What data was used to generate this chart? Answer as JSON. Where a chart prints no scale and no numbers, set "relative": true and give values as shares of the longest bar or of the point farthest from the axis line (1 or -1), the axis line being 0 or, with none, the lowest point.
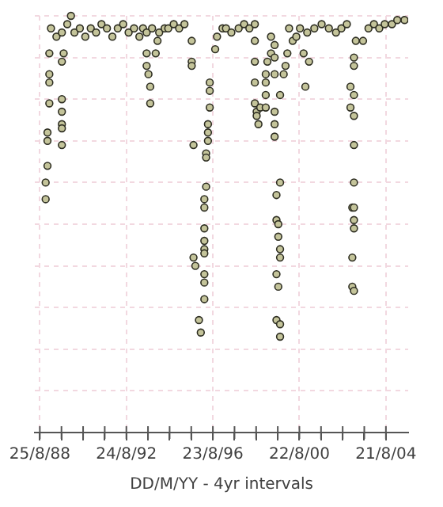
{
  "chart_data": {
    "type": "scatter",
    "xlabel": "DD/M/YY - 4yr intervals",
    "relative": true,
    "grid": true,
    "legend": false,
    "marker": "circle",
    "xlim": [
      "1988-06-01",
      "2005-09-01"
    ],
    "xticks": [
      {
        "value": "1988-08-25",
        "label": "25/8/88"
      },
      {
        "value": "1989-08-25",
        "label": null
      },
      {
        "value": "1990-08-25",
        "label": null
      },
      {
        "value": "1991-08-25",
        "label": null
      },
      {
        "value": "1992-08-24",
        "label": "24/8/92"
      },
      {
        "value": "1993-08-24",
        "label": null
      },
      {
        "value": "1994-08-24",
        "label": null
      },
      {
        "value": "1995-08-24",
        "label": null
      },
      {
        "value": "1996-08-23",
        "label": "23/8/96"
      },
      {
        "value": "1997-08-23",
        "label": null
      },
      {
        "value": "1998-08-23",
        "label": null
      },
      {
        "value": "1999-08-23",
        "label": null
      },
      {
        "value": "2000-08-22",
        "label": "22/8/00"
      },
      {
        "value": "2001-08-22",
        "label": null
      },
      {
        "value": "2002-08-22",
        "label": null
      },
      {
        "value": "2003-08-22",
        "label": null
      },
      {
        "value": "2004-08-21",
        "label": "21/8/04"
      }
    ],
    "series": [
      {
        "color": "#c4c49a",
        "x": [
          "1989-03",
          "1989-06",
          "1989-09",
          "1989-12",
          "1990-02",
          "1990-04",
          "1990-07",
          "1990-10",
          "1991-01",
          "1991-04",
          "1991-07",
          "1991-10",
          "1992-01",
          "1992-04",
          "1992-07",
          "1992-10",
          "1993-01",
          "1993-04",
          "1993-06",
          "1993-08",
          "1993-11",
          "1994-03",
          "1994-06",
          "1994-08",
          "1989-02",
          "1989-02",
          "1989-02",
          "1989-02",
          "1989-01",
          "1989-01",
          "1989-01",
          "1988-12",
          "1988-12",
          "1989-10",
          "1989-09",
          "1989-09",
          "1989-09",
          "1989-09",
          "1989-09",
          "1989-09",
          "1993-08",
          "1993-08",
          "1993-09",
          "1993-10",
          "1993-10",
          "1994-01",
          "1994-02",
          "1994-11",
          "1995-02",
          "1995-05",
          "1995-09",
          "1995-09",
          "1995-09",
          "1995-10",
          "1995-10",
          "1995-11",
          "1996-07",
          "1996-07",
          "1996-07",
          "1996-06",
          "1996-06",
          "1996-06",
          "1996-05",
          "1996-05",
          "1996-05",
          "1996-04",
          "1996-04",
          "1996-04",
          "1996-04",
          "1996-04",
          "1996-04",
          "1996-04",
          "1996-04",
          "1996-04",
          "1996-01",
          "1996-02",
          "1996-10",
          "1996-11",
          "1997-02",
          "1997-04",
          "1997-07",
          "1997-11",
          "1998-02",
          "1998-05",
          "1998-08",
          "1998-08",
          "1998-08",
          "1998-08",
          "1998-08",
          "1998-09",
          "1998-09",
          "1998-10",
          "1998-11",
          "1999-05",
          "1999-05",
          "1999-03",
          "1999-02",
          "1999-02",
          "1999-02",
          "1999-02",
          "1999-07",
          "1999-07",
          "1999-07",
          "1999-07",
          "1999-07",
          "1999-07",
          "1999-10",
          "1999-08",
          "1999-08",
          "1999-09",
          "1999-09",
          "1999-10",
          "1999-10",
          "1999-08",
          "1999-09",
          "1999-08",
          "1999-10",
          "1999-10",
          "1999-10",
          "1999-12",
          "2000-01",
          "2000-02",
          "2000-05",
          "2000-07",
          "2000-11",
          "2001-02",
          "2000-12",
          "2000-03",
          "2000-09",
          "2001-01",
          "2001-05",
          "2001-09",
          "2002-01",
          "2002-05",
          "2002-08",
          "2002-11",
          "2003-03",
          "2003-03",
          "2003-01",
          "2003-03",
          "2003-01",
          "2003-03",
          "2003-03",
          "2003-03",
          "2003-02",
          "2003-03",
          "2003-03",
          "2003-03",
          "2003-02",
          "2003-02",
          "2003-03",
          "2003-04",
          "2003-08",
          "2003-11",
          "2004-02",
          "2004-05",
          "2004-08",
          "2004-12",
          "2005-03",
          "2005-07"
        ],
        "values": [
          0.97,
          0.95,
          0.96,
          0.98,
          1.0,
          0.96,
          0.97,
          0.95,
          0.97,
          0.96,
          0.98,
          0.97,
          0.95,
          0.97,
          0.98,
          0.96,
          0.97,
          0.95,
          0.97,
          0.96,
          0.97,
          0.96,
          0.97,
          0.97,
          0.91,
          0.86,
          0.84,
          0.79,
          0.72,
          0.7,
          0.64,
          0.6,
          0.56,
          0.91,
          0.89,
          0.8,
          0.77,
          0.74,
          0.73,
          0.69,
          0.91,
          0.88,
          0.86,
          0.83,
          0.79,
          0.91,
          0.94,
          0.98,
          0.97,
          0.98,
          0.94,
          0.89,
          0.88,
          0.69,
          0.42,
          0.4,
          0.84,
          0.82,
          0.78,
          0.74,
          0.72,
          0.7,
          0.67,
          0.66,
          0.59,
          0.56,
          0.54,
          0.49,
          0.46,
          0.44,
          0.43,
          0.38,
          0.36,
          0.32,
          0.27,
          0.24,
          0.92,
          0.95,
          0.97,
          0.97,
          0.96,
          0.97,
          0.98,
          0.97,
          0.98,
          0.94,
          0.89,
          0.84,
          0.79,
          0.77,
          0.76,
          0.74,
          0.78,
          0.95,
          0.91,
          0.89,
          0.86,
          0.84,
          0.81,
          0.78,
          0.93,
          0.9,
          0.86,
          0.77,
          0.74,
          0.71,
          0.6,
          0.57,
          0.51,
          0.5,
          0.47,
          0.44,
          0.42,
          0.38,
          0.35,
          0.27,
          0.26,
          0.23,
          0.81,
          0.86,
          0.88,
          0.91,
          0.94,
          0.95,
          0.91,
          0.89,
          0.83,
          0.97,
          0.97,
          0.96,
          0.97,
          0.98,
          0.97,
          0.96,
          0.97,
          0.98,
          0.9,
          0.88,
          0.83,
          0.81,
          0.78,
          0.76,
          0.69,
          0.6,
          0.54,
          0.54,
          0.51,
          0.49,
          0.42,
          0.35,
          0.34,
          0.94,
          0.94,
          0.97,
          0.98,
          0.97,
          0.98,
          0.98,
          0.99,
          0.99
        ]
      }
    ]
  }
}
